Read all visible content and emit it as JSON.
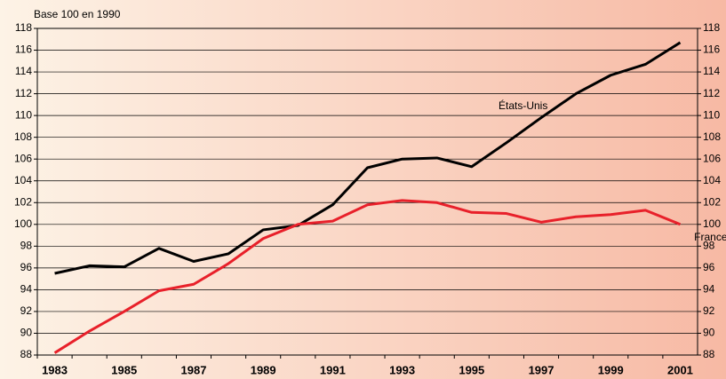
{
  "chart_data": {
    "type": "line",
    "subtitle": "Base 100 en 1990",
    "categories": [
      "1983",
      null,
      "1985",
      null,
      "1987",
      null,
      "1989",
      null,
      "1991",
      null,
      "1993",
      null,
      "1995",
      null,
      "1997",
      null,
      "1999",
      null,
      "2001"
    ],
    "series": [
      {
        "name": "États-Unis",
        "color": "#000000",
        "values": [
          95.5,
          96.2,
          96.1,
          97.8,
          96.6,
          97.3,
          99.5,
          99.9,
          101.8,
          105.2,
          106.0,
          106.1,
          105.3,
          107.5,
          109.8,
          112.0,
          113.7,
          114.7,
          116.7
        ]
      },
      {
        "name": "France",
        "color": "#e8202a",
        "values": [
          88.2,
          90.2,
          92.0,
          93.9,
          94.5,
          96.4,
          98.7,
          100.0,
          100.3,
          101.8,
          102.2,
          102.0,
          101.1,
          101.0,
          100.2,
          100.7,
          100.9,
          101.3,
          100.0
        ]
      }
    ],
    "ylim": [
      88,
      118
    ],
    "yticks": [
      88,
      90,
      92,
      94,
      96,
      98,
      100,
      102,
      104,
      106,
      108,
      110,
      112,
      114,
      116,
      118
    ],
    "grid": true
  }
}
